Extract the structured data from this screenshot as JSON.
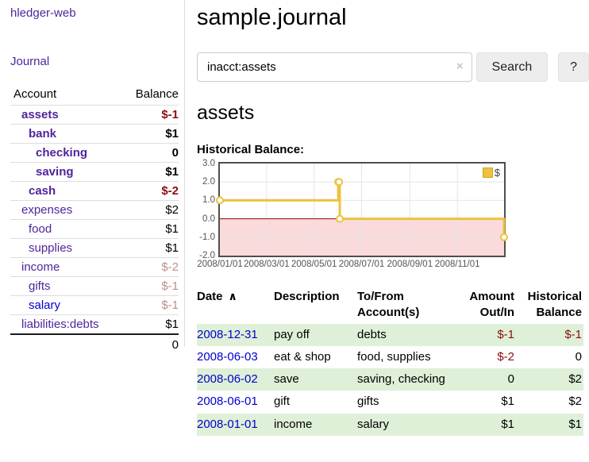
{
  "sidebar": {
    "brand": "hledger-web",
    "journal_link": "Journal",
    "table": {
      "account_header": "Account",
      "balance_header": "Balance",
      "accounts": [
        {
          "name": "assets",
          "level": 0,
          "bold": true,
          "balance": "$-1",
          "balance_style": "neg-strong",
          "link_style": "purple"
        },
        {
          "name": "bank",
          "level": 1,
          "bold": true,
          "balance": "$1",
          "balance_style": "",
          "link_style": "purple"
        },
        {
          "name": "checking",
          "level": 2,
          "bold": true,
          "balance": "0",
          "balance_style": "",
          "link_style": "purple"
        },
        {
          "name": "saving",
          "level": 2,
          "bold": true,
          "balance": "$1",
          "balance_style": "",
          "link_style": "purple"
        },
        {
          "name": "cash",
          "level": 1,
          "bold": true,
          "balance": "$-2",
          "balance_style": "neg-strong",
          "link_style": "purple"
        },
        {
          "name": "expenses",
          "level": 0,
          "bold": false,
          "balance": "$2",
          "balance_style": "",
          "link_style": "purple"
        },
        {
          "name": "food",
          "level": 1,
          "bold": false,
          "balance": "$1",
          "balance_style": "",
          "link_style": "purple"
        },
        {
          "name": "supplies",
          "level": 1,
          "bold": false,
          "balance": "$1",
          "balance_style": "",
          "link_style": "purple"
        },
        {
          "name": "income",
          "level": 0,
          "bold": false,
          "balance": "$-2",
          "balance_style": "neg-soft",
          "link_style": "purple"
        },
        {
          "name": "gifts",
          "level": 1,
          "bold": false,
          "balance": "$-1",
          "balance_style": "neg-soft",
          "link_style": "purple"
        },
        {
          "name": "salary",
          "level": 1,
          "bold": false,
          "balance": "$-1",
          "balance_style": "neg-soft",
          "link_style": "blue"
        },
        {
          "name": "liabilities:debts",
          "level": 0,
          "bold": false,
          "balance": "$1",
          "balance_style": "",
          "link_style": "purple"
        }
      ],
      "total": "0"
    }
  },
  "main": {
    "title": "sample.journal",
    "search": {
      "value": "inacct:assets",
      "clear_icon": "×",
      "search_button": "Search",
      "help_button": "?"
    },
    "account_heading": "assets",
    "chart_label": "Historical Balance:"
  },
  "chart_data": {
    "type": "line",
    "step": true,
    "title": "Historical Balance",
    "legend_label": "$",
    "ylim": [
      -2,
      3
    ],
    "y_ticks": [
      "3.0",
      "2.0",
      "1.0",
      "0.0",
      "-1.0",
      "-2.0"
    ],
    "x_domain_days": [
      0,
      365
    ],
    "x_ticks": [
      {
        "label": "2008/01/01",
        "day": 0
      },
      {
        "label": "2008/03/01",
        "day": 60
      },
      {
        "label": "2008/05/01",
        "day": 121
      },
      {
        "label": "2008/07/01",
        "day": 182
      },
      {
        "label": "2008/09/01",
        "day": 244
      },
      {
        "label": "2008/11/01",
        "day": 305
      }
    ],
    "points": [
      {
        "date": "2008-01-01",
        "day": 0,
        "value": 1
      },
      {
        "date": "2008-06-01",
        "day": 152,
        "value": 2
      },
      {
        "date": "2008-06-02",
        "day": 153,
        "value": 2
      },
      {
        "date": "2008-06-03",
        "day": 154,
        "value": 0
      },
      {
        "date": "2008-12-31",
        "day": 365,
        "value": -1
      }
    ],
    "colors": {
      "line": "#edc240",
      "marker_fill": "#ffffff",
      "negative_fill": "#fadada",
      "zero_line": "#8b0000",
      "grid": "#e5e5e5",
      "border": "#4f4f4f"
    }
  },
  "register": {
    "headers": {
      "date": "Date",
      "sort_icon": "∧",
      "description": "Description",
      "accounts": "To/From Account(s)",
      "amount": "Amount Out/In",
      "balance": "Historical Balance"
    },
    "rows": [
      {
        "date": "2008-12-31",
        "description": "pay off",
        "accounts": "debts",
        "amount": "$-1",
        "amount_neg": true,
        "balance": "$-1",
        "balance_neg": true
      },
      {
        "date": "2008-06-03",
        "description": "eat & shop",
        "accounts": "food, supplies",
        "amount": "$-2",
        "amount_neg": true,
        "balance": "0",
        "balance_neg": false
      },
      {
        "date": "2008-06-02",
        "description": "save",
        "accounts": "saving, checking",
        "amount": "0",
        "amount_neg": false,
        "balance": "$2",
        "balance_neg": false
      },
      {
        "date": "2008-06-01",
        "description": "gift",
        "accounts": "gifts",
        "amount": "$1",
        "amount_neg": false,
        "balance": "$2",
        "balance_neg": false
      },
      {
        "date": "2008-01-01",
        "description": "income",
        "accounts": "salary",
        "amount": "$1",
        "amount_neg": false,
        "balance": "$1",
        "balance_neg": false
      }
    ]
  }
}
